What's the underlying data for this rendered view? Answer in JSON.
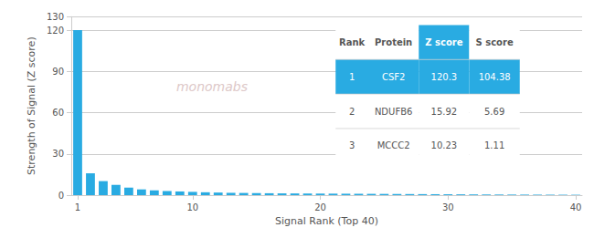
{
  "chart_data": {
    "type": "bar",
    "xlabel": "Signal Rank (Top 40)",
    "ylabel": "Strength of Signal (Z score)",
    "x": [
      1,
      2,
      3,
      4,
      5,
      6,
      7,
      8,
      9,
      10,
      11,
      12,
      13,
      14,
      15,
      16,
      17,
      18,
      19,
      20,
      21,
      22,
      23,
      24,
      25,
      26,
      27,
      28,
      29,
      30,
      31,
      32,
      33,
      34,
      35,
      36,
      37,
      38,
      39,
      40
    ],
    "values": [
      120.3,
      15.92,
      10.23,
      7.5,
      5.5,
      4.2,
      3.5,
      3.0,
      2.7,
      2.4,
      2.1,
      1.9,
      1.7,
      1.6,
      1.5,
      1.4,
      1.3,
      1.25,
      1.2,
      1.15,
      1.1,
      1.05,
      1.0,
      0.95,
      0.9,
      0.85,
      0.8,
      0.75,
      0.7,
      0.65,
      0.6,
      0.55,
      0.5,
      0.47,
      0.44,
      0.41,
      0.38,
      0.35,
      0.32,
      0.29
    ],
    "color": "#29ABE2",
    "xlim": [
      0.5,
      40.5
    ],
    "xticks": [
      1,
      10,
      20,
      30,
      40
    ],
    "ylim": [
      0,
      130
    ],
    "yticks": [
      0,
      30,
      60,
      90,
      120
    ],
    "grid": true,
    "annotations": [
      {
        "text": "monomabs",
        "color": "#ddc8c8"
      }
    ],
    "table": {
      "columns": [
        "Rank",
        "Protein",
        "Z score",
        "S score"
      ],
      "rows": [
        [
          "1",
          "CSF2",
          "120.3",
          "104.38"
        ],
        [
          "2",
          "NDUFB6",
          "15.92",
          "5.69"
        ],
        [
          "3",
          "MCCC2",
          "10.23",
          "1.11"
        ]
      ],
      "color": "#29ABE2"
    }
  }
}
